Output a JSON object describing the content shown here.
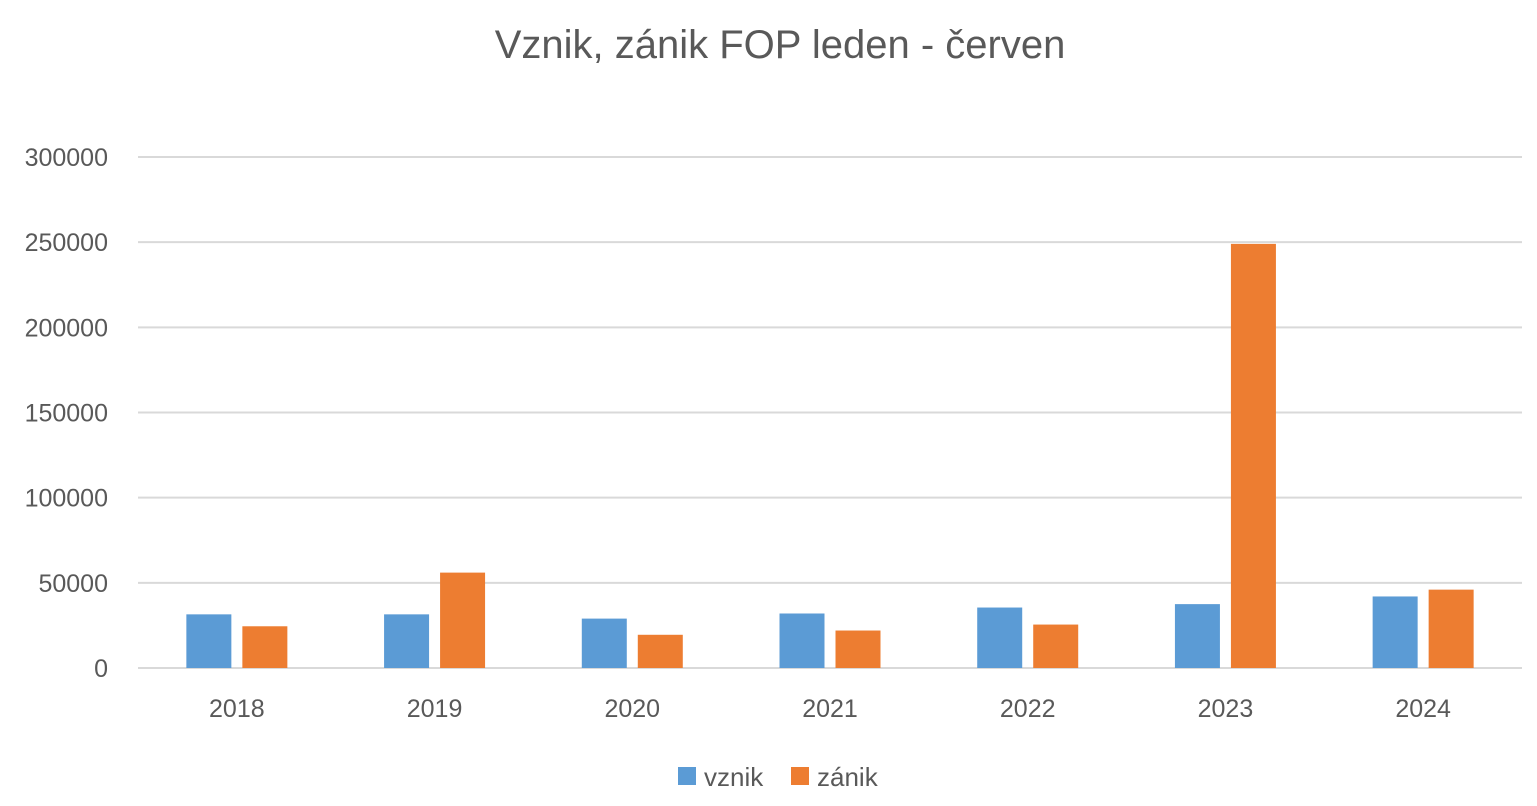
{
  "chart_data": {
    "type": "bar",
    "title": "Vznik, zánik FOP leden - červen",
    "categories": [
      "2018",
      "2019",
      "2020",
      "2021",
      "2022",
      "2023",
      "2024"
    ],
    "series": [
      {
        "name": "vznik",
        "color": "#5B9BD5",
        "values": [
          31500,
          31500,
          29000,
          32000,
          35500,
          37500,
          42000
        ]
      },
      {
        "name": "zánik",
        "color": "#ED7D31",
        "values": [
          24500,
          56000,
          19500,
          22000,
          25500,
          249000,
          46000
        ]
      }
    ],
    "ylim": [
      0,
      300000
    ],
    "yticks": [
      0,
      50000,
      100000,
      150000,
      200000,
      250000,
      300000
    ],
    "grid": true,
    "legend": "bottom"
  }
}
